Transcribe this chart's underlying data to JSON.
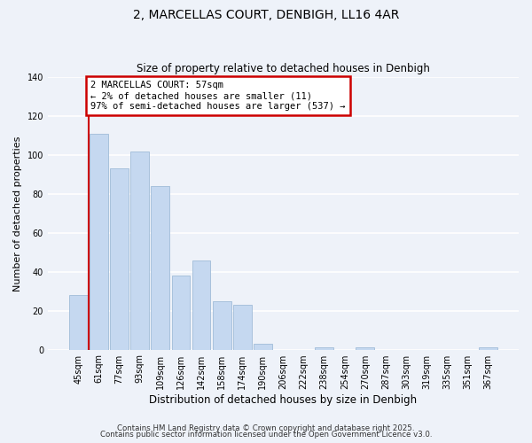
{
  "title": "2, MARCELLAS COURT, DENBIGH, LL16 4AR",
  "subtitle": "Size of property relative to detached houses in Denbigh",
  "xlabel": "Distribution of detached houses by size in Denbigh",
  "ylabel": "Number of detached properties",
  "bar_color": "#c5d8f0",
  "bar_edge_color": "#a0bcd8",
  "bin_labels": [
    "45sqm",
    "61sqm",
    "77sqm",
    "93sqm",
    "109sqm",
    "126sqm",
    "142sqm",
    "158sqm",
    "174sqm",
    "190sqm",
    "206sqm",
    "222sqm",
    "238sqm",
    "254sqm",
    "270sqm",
    "287sqm",
    "303sqm",
    "319sqm",
    "335sqm",
    "351sqm",
    "367sqm"
  ],
  "bar_heights": [
    28,
    111,
    93,
    102,
    84,
    38,
    46,
    25,
    23,
    3,
    0,
    0,
    1,
    0,
    1,
    0,
    0,
    0,
    0,
    0,
    1
  ],
  "ylim": [
    0,
    140
  ],
  "yticks": [
    0,
    20,
    40,
    60,
    80,
    100,
    120,
    140
  ],
  "annotation_title": "2 MARCELLAS COURT: 57sqm",
  "annotation_line1": "← 2% of detached houses are smaller (11)",
  "annotation_line2": "97% of semi-detached houses are larger (537) →",
  "annotation_box_color": "#ffffff",
  "annotation_box_edge": "#cc0000",
  "marker_line_color": "#cc0000",
  "footer1": "Contains HM Land Registry data © Crown copyright and database right 2025.",
  "footer2": "Contains public sector information licensed under the Open Government Licence v3.0.",
  "background_color": "#eef2f9"
}
